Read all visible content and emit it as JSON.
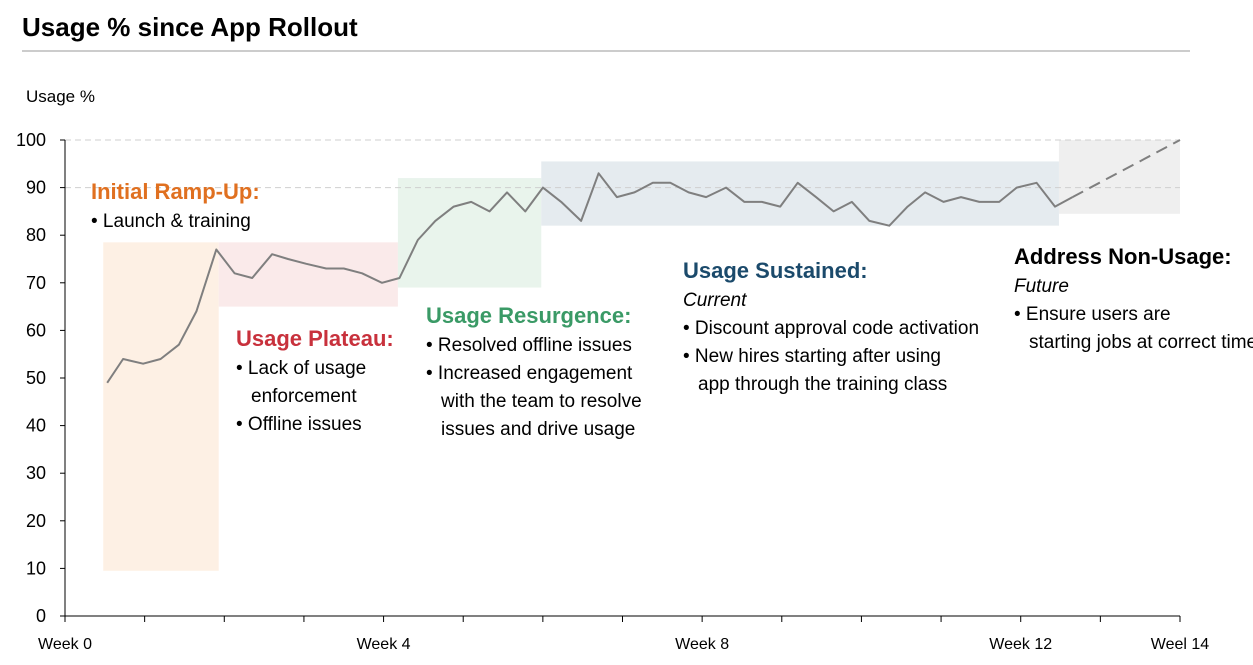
{
  "chart_data": {
    "type": "line",
    "title": "Usage % since App Rollout",
    "ylabel": "Usage %",
    "xlabel": "",
    "ylim": [
      0,
      100
    ],
    "xlim": [
      0,
      14
    ],
    "yticks": [
      0,
      10,
      20,
      30,
      40,
      50,
      60,
      70,
      80,
      90,
      100
    ],
    "xtick_positions": [
      0,
      1,
      2,
      3,
      4,
      5,
      6,
      7,
      8,
      9,
      10,
      11,
      12,
      13,
      14
    ],
    "xtick_labels": [
      {
        "x": 0,
        "label": "Week 0"
      },
      {
        "x": 4,
        "label": "Week 4"
      },
      {
        "x": 8,
        "label": "Week 8"
      },
      {
        "x": 12,
        "label": "Week 12"
      },
      {
        "x": 14,
        "label": "Weel 14"
      }
    ],
    "reference_lines": [
      100,
      90
    ],
    "series": [
      {
        "color": "#7f7f7f",
        "x": [
          0.53,
          0.73,
          0.98,
          1.2,
          1.43,
          1.65,
          1.9,
          2.13,
          2.35,
          2.6,
          2.8,
          3.03,
          3.28,
          3.5,
          3.73,
          3.98,
          4.2,
          4.43,
          4.65,
          4.88,
          5.1,
          5.33,
          5.55,
          5.78,
          6.0,
          6.23,
          6.48,
          6.7,
          6.93,
          7.15,
          7.38,
          7.6,
          7.83,
          8.05,
          8.3,
          8.53,
          8.75,
          8.98,
          9.2,
          9.43,
          9.65,
          9.88,
          10.1,
          10.35,
          10.58,
          10.8,
          11.03,
          11.25,
          11.48,
          11.73,
          11.95,
          12.2,
          12.43,
          12.65
        ],
        "values": [
          49,
          54,
          53,
          54,
          57,
          64,
          77,
          72,
          71,
          76,
          75,
          74,
          73,
          73,
          72,
          70,
          71,
          79,
          83,
          86,
          87,
          85,
          89,
          85,
          90,
          87,
          83,
          93,
          88,
          89,
          91,
          91,
          89,
          88,
          90,
          87,
          87,
          86,
          91,
          88,
          85,
          87,
          83,
          82,
          86,
          89,
          87,
          88,
          87,
          87,
          90,
          91,
          86,
          88
        ]
      },
      {
        "color": "#7f7f7f",
        "dashed": true,
        "x": [
          12.65,
          14.0
        ],
        "values": [
          88,
          100
        ]
      }
    ],
    "shaded_regions": [
      {
        "x0": 0.48,
        "x1": 1.93,
        "y0": 9.5,
        "y1": 78.5,
        "color": "#fdf0e4"
      },
      {
        "x0": 1.93,
        "x1": 4.18,
        "y0": 65,
        "y1": 78.5,
        "color": "#faeaea"
      },
      {
        "x0": 4.18,
        "x1": 5.98,
        "y0": 69,
        "y1": 92,
        "color": "#e9f4ec"
      },
      {
        "x0": 5.98,
        "x1": 12.48,
        "y0": 82,
        "y1": 95.5,
        "color": "#e5ebef"
      },
      {
        "x0": 12.48,
        "x1": 14.0,
        "y0": 84.5,
        "y1": 100,
        "color": "#efefef"
      }
    ],
    "annotations": [
      {
        "title": "Initial Ramp-Up:",
        "color": "#e07020",
        "subtitle": "",
        "bullets": [
          "Launch & training"
        ]
      },
      {
        "title": "Usage Plateau:",
        "color": "#c8313c",
        "subtitle": "",
        "bullets": [
          "Lack of usage enforcement",
          "Offline issues"
        ]
      },
      {
        "title": "Usage Resurgence:",
        "color": "#3a9a66",
        "subtitle": "",
        "bullets": [
          "Resolved offline issues",
          "Increased engagement with the team to resolve issues and drive usage"
        ]
      },
      {
        "title": "Usage Sustained:",
        "color": "#1b4a6b",
        "subtitle": "Current",
        "bullets": [
          "Discount approval code activation",
          "New hires starting after using app through the training class"
        ]
      },
      {
        "title": "Address Non-Usage:",
        "color": "#000000",
        "subtitle": "Future",
        "bullets": [
          "Ensure users are starting jobs at correct time"
        ]
      }
    ]
  }
}
